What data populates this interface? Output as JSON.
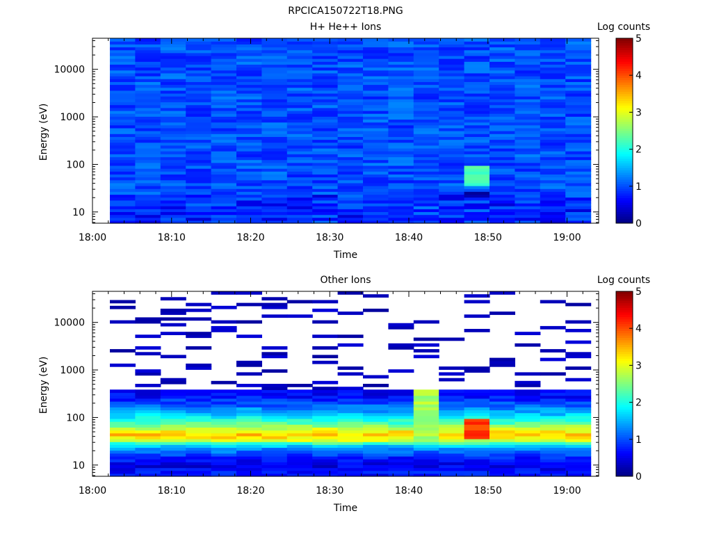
{
  "figure_title": "RPCICA150722T18.PNG",
  "chart_data": [
    {
      "type": "heatmap",
      "title": "H+ He++ Ions",
      "xlabel": "Time",
      "ylabel": "Energy (eV)",
      "x_ticks": [
        "18:00",
        "18:10",
        "18:20",
        "18:30",
        "18:40",
        "18:50",
        "19:00"
      ],
      "x_range_minutes": [
        0,
        64
      ],
      "data_start_minute": 2.2,
      "data_end_minute": 63.0,
      "y_scale": "log",
      "y_ticks": [
        10,
        100,
        1000,
        10000
      ],
      "y_range": [
        5.8,
        45000
      ],
      "colorbar": {
        "label": "Log counts",
        "ticks": [
          0,
          1,
          2,
          3,
          4,
          5
        ],
        "range": [
          0,
          5
        ]
      },
      "background_level": 1.0,
      "time_bins": 19,
      "notable_features": [
        {
          "time_minute_start": 47.3,
          "time_minute_end": 50.4,
          "energy_min": 37,
          "energy_max": 92,
          "log_counts": 2.2
        },
        {
          "time_minute_start": 47.3,
          "time_minute_end": 50.4,
          "energy_min": 20,
          "energy_max": 27,
          "log_counts": 0.1
        }
      ],
      "grid": false
    },
    {
      "type": "heatmap",
      "title": "Other Ions",
      "xlabel": "Time",
      "ylabel": "Energy (eV)",
      "x_ticks": [
        "18:00",
        "18:10",
        "18:20",
        "18:30",
        "18:40",
        "18:50",
        "19:00"
      ],
      "x_range_minutes": [
        0,
        64
      ],
      "data_start_minute": 2.2,
      "data_end_minute": 63.0,
      "y_scale": "log",
      "y_ticks": [
        10,
        100,
        1000,
        10000
      ],
      "y_range": [
        5.8,
        45000
      ],
      "colorbar": {
        "label": "Log counts",
        "ticks": [
          0,
          1,
          2,
          3,
          4,
          5
        ],
        "range": [
          0,
          5
        ]
      },
      "energy_profile": [
        {
          "energy": 7,
          "log_counts": 0.7
        },
        {
          "energy": 10,
          "log_counts": 0.5
        },
        {
          "energy": 15,
          "log_counts": 0.8
        },
        {
          "energy": 25,
          "log_counts": 1.5
        },
        {
          "energy": 35,
          "log_counts": 3.1
        },
        {
          "energy": 45,
          "log_counts": 3.4
        },
        {
          "energy": 60,
          "log_counts": 2.8
        },
        {
          "energy": 80,
          "log_counts": 2.2
        },
        {
          "energy": 120,
          "log_counts": 1.6
        },
        {
          "energy": 200,
          "log_counts": 1.0
        },
        {
          "energy": 300,
          "log_counts": 0.6
        }
      ],
      "notable_features": [
        {
          "time_minute_start": 47.3,
          "time_minute_end": 50.4,
          "energy_min": 35,
          "energy_max": 95,
          "log_counts": 4.1
        },
        {
          "time_minute_start": 40.9,
          "time_minute_end": 44.1,
          "energy_min": 30,
          "energy_max": 400,
          "log_counts": 2.7
        }
      ],
      "grid": false
    }
  ]
}
